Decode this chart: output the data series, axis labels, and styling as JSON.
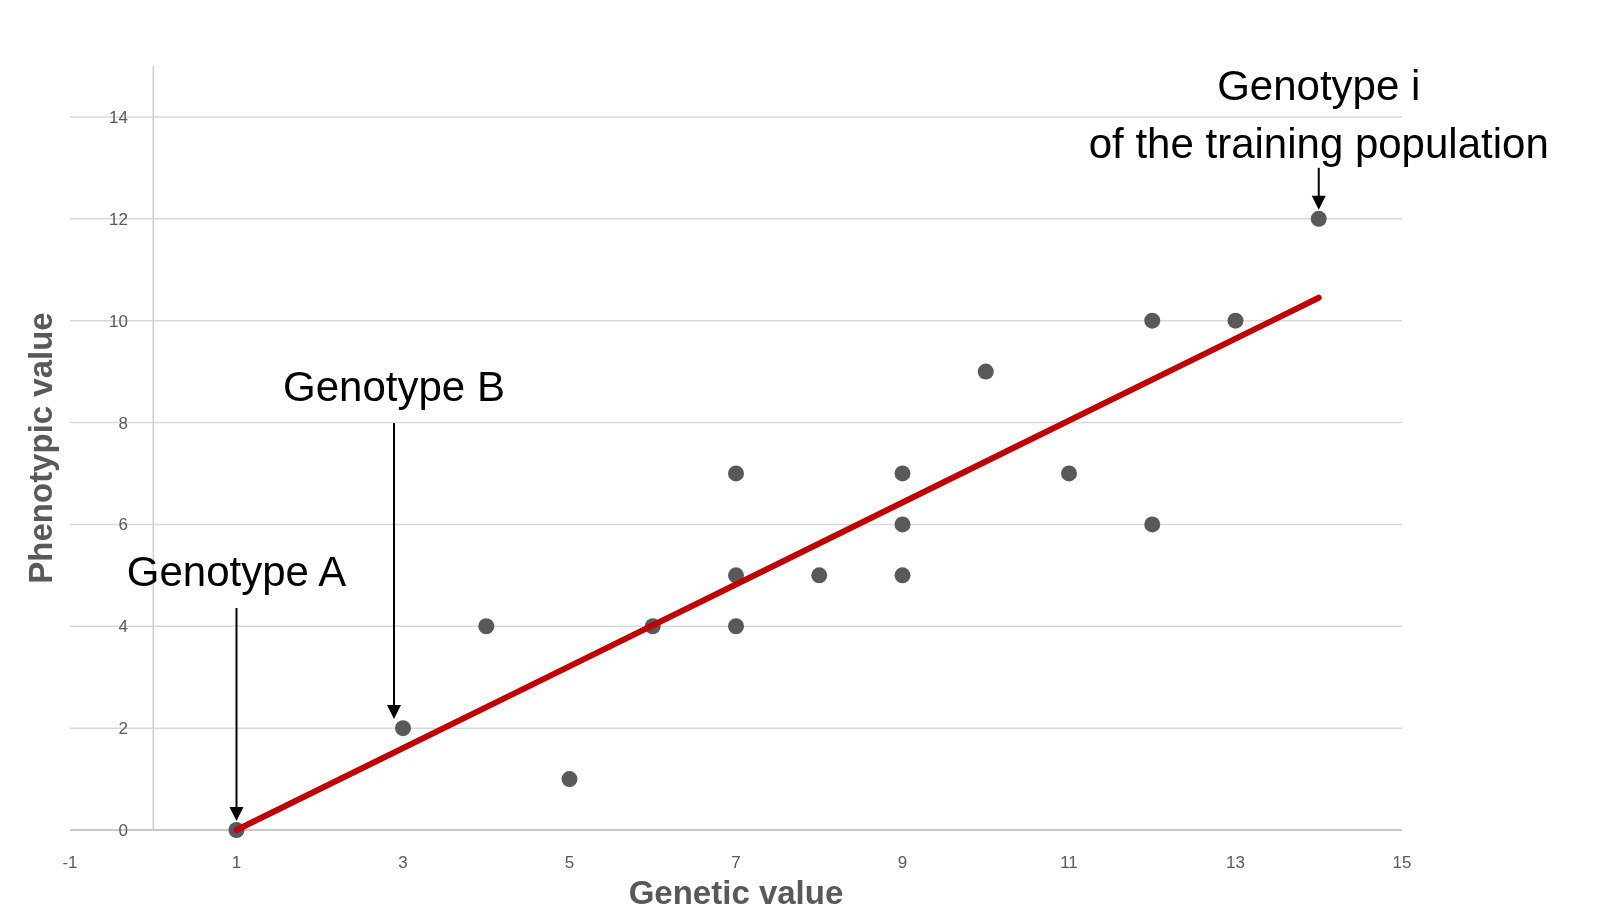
{
  "chart_data": {
    "type": "scatter",
    "xlabel": "Genetic value",
    "ylabel": "Phenotypic value",
    "xlim": [
      -1,
      15
    ],
    "xticks": [
      -1,
      1,
      3,
      5,
      7,
      9,
      11,
      13,
      15
    ],
    "ylim": [
      0,
      15
    ],
    "yticks": [
      0,
      2,
      4,
      6,
      8,
      10,
      12,
      14
    ],
    "grid": "y",
    "series": [
      {
        "color": "#595959",
        "marker": "circle",
        "x": [
          1,
          3,
          4,
          5,
          6,
          7,
          7,
          7,
          8,
          9,
          9,
          9,
          10,
          11,
          12,
          12,
          13,
          14
        ],
        "values": [
          0,
          2,
          4,
          1,
          4,
          7,
          5,
          4,
          5,
          7,
          6,
          5,
          9,
          7,
          10,
          6,
          10,
          12
        ]
      },
      {
        "type": "line",
        "color": "#c00000",
        "line_style": "solid",
        "x": [
          1,
          14
        ],
        "values": [
          0,
          10.45
        ]
      }
    ],
    "annotations": [
      "Genotype A",
      "Genotype B",
      {
        "text": "Genotype i\nof the training population",
        "x": 14,
        "y": 12
      }
    ]
  }
}
